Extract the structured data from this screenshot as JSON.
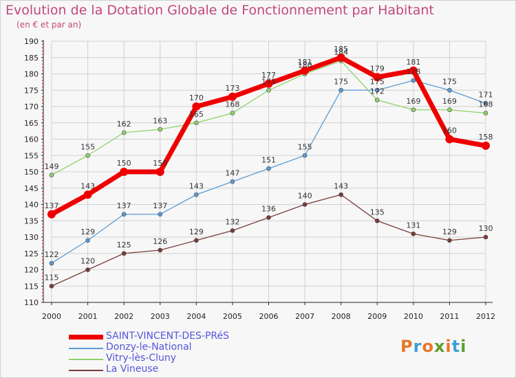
{
  "title": "Evolution de la Dotation Globale de Fonctionnement par Habitant",
  "subtitle": "(en € et par an)",
  "logo_text": "Proxiti",
  "colors": {
    "title": "#c2477c",
    "legend_text": "#5555dd",
    "logo": [
      "#e8762a",
      "#3aa0d8",
      "#e8762a",
      "#5aa02c",
      "#e8762a",
      "#3aa0d8",
      "#5aa02c"
    ]
  },
  "chart_data": {
    "type": "line",
    "title": "Evolution de la Dotation Globale de Fonctionnement par Habitant",
    "subtitle": "(en € et par an)",
    "xlabel": "",
    "ylabel": "",
    "x": [
      "2000",
      "2001",
      "2002",
      "2003",
      "2004",
      "2005",
      "2006",
      "2007",
      "2008",
      "2009",
      "2010",
      "2011",
      "2012"
    ],
    "ylim": [
      110,
      190
    ],
    "yticks": [
      110,
      115,
      120,
      125,
      130,
      135,
      140,
      145,
      150,
      155,
      160,
      165,
      170,
      175,
      180,
      185,
      190
    ],
    "grid": true,
    "legend_position": "bottom-left",
    "series": [
      {
        "name": "SAINT-VINCENT-DES-PRéS",
        "color": "#ee0000",
        "values": [
          137,
          143,
          150,
          150,
          170,
          173,
          177,
          181,
          185,
          179,
          181,
          160,
          158
        ]
      },
      {
        "name": "Donzy-le-National",
        "color": "#5b9bd5",
        "values": [
          122,
          129,
          137,
          137,
          143,
          147,
          151,
          155,
          175,
          175,
          178,
          175,
          171
        ]
      },
      {
        "name": "Vitry-lès-Cluny",
        "color": "#8fd16b",
        "values": [
          149,
          155,
          162,
          163,
          165,
          168,
          175,
          180,
          184,
          172,
          169,
          169,
          168
        ]
      },
      {
        "name": "La Vineuse",
        "color": "#7a3a3a",
        "values": [
          115,
          120,
          125,
          126,
          129,
          132,
          136,
          140,
          143,
          135,
          131,
          129,
          130
        ]
      }
    ]
  }
}
